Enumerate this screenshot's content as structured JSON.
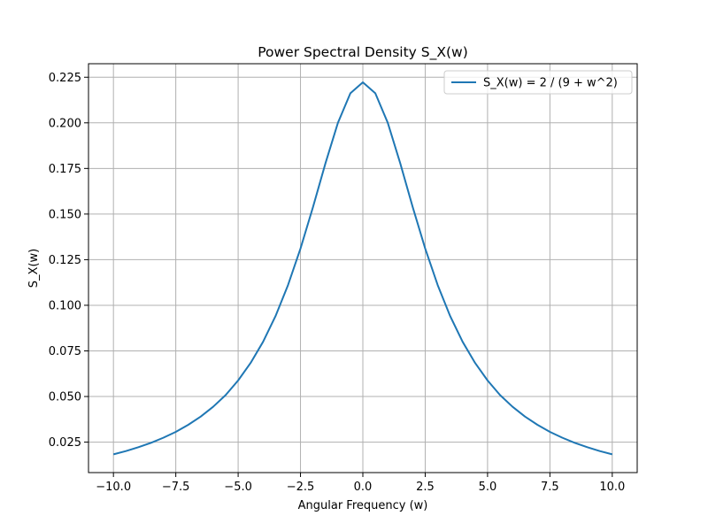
{
  "chart_data": {
    "type": "line",
    "title": "Power Spectral Density S_X(w)",
    "xlabel": "Angular Frequency (w)",
    "ylabel": "S_X(w)",
    "xlim": [
      -11.0,
      11.0
    ],
    "ylim": [
      0.0083,
      0.2324
    ],
    "xticks": [
      -10.0,
      -7.5,
      -5.0,
      -2.5,
      0.0,
      2.5,
      5.0,
      7.5,
      10.0
    ],
    "xtick_labels": [
      "−10.0",
      "−7.5",
      "−5.0",
      "−2.5",
      "0.0",
      "2.5",
      "5.0",
      "7.5",
      "10.0"
    ],
    "yticks": [
      0.025,
      0.05,
      0.075,
      0.1,
      0.125,
      0.15,
      0.175,
      0.2,
      0.225
    ],
    "ytick_labels": [
      "0.025",
      "0.050",
      "0.075",
      "0.100",
      "0.125",
      "0.150",
      "0.175",
      "0.200",
      "0.225"
    ],
    "grid": true,
    "legend_position": "top-right",
    "series": [
      {
        "name": "S_X(w) = 2 / (9 + w^2)",
        "color": "#1f77b4",
        "x": [
          -10,
          -9.5,
          -9,
          -8.5,
          -8,
          -7.5,
          -7,
          -6.5,
          -6,
          -5.5,
          -5,
          -4.5,
          -4,
          -3.5,
          -3,
          -2.5,
          -2,
          -1.5,
          -1,
          -0.5,
          0,
          0.5,
          1,
          1.5,
          2,
          2.5,
          3,
          3.5,
          4,
          4.5,
          5,
          5.5,
          6,
          6.5,
          7,
          7.5,
          8,
          8.5,
          9,
          9.5,
          10
        ],
        "y": [
          0.0183,
          0.0201,
          0.0222,
          0.0246,
          0.0274,
          0.0306,
          0.0345,
          0.039,
          0.0444,
          0.0508,
          0.0588,
          0.0684,
          0.08,
          0.0941,
          0.1111,
          0.1311,
          0.1538,
          0.1778,
          0.2,
          0.2162,
          0.2222,
          0.2162,
          0.2,
          0.1778,
          0.1538,
          0.1311,
          0.1111,
          0.0941,
          0.08,
          0.0684,
          0.0588,
          0.0508,
          0.0444,
          0.039,
          0.0345,
          0.0306,
          0.0274,
          0.0246,
          0.0222,
          0.0201,
          0.0183
        ]
      }
    ]
  }
}
